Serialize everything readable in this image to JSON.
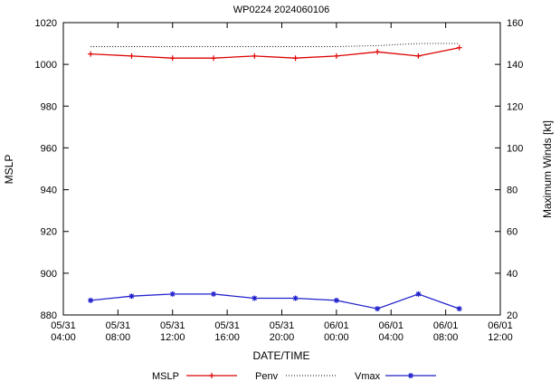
{
  "title": "WP0224 2024060106",
  "axes": {
    "y_left_label": "MSLP",
    "y_right_label": "Maximum Winds [kt]",
    "x_label": "DATE/TIME"
  },
  "chart_data": {
    "type": "line",
    "title": "WP0224 2024060106",
    "xlabel": "DATE/TIME",
    "ylabel_left": "MSLP",
    "ylabel_right": "Maximum Winds [kt]",
    "grid": false,
    "legend_position": "bottom-center",
    "x_range_hours": [
      4,
      36
    ],
    "x_ticks": [
      {
        "date": "05/31",
        "time": "04:00",
        "hour": 4
      },
      {
        "date": "05/31",
        "time": "08:00",
        "hour": 8
      },
      {
        "date": "05/31",
        "time": "12:00",
        "hour": 12
      },
      {
        "date": "05/31",
        "time": "16:00",
        "hour": 16
      },
      {
        "date": "05/31",
        "time": "20:00",
        "hour": 20
      },
      {
        "date": "06/01",
        "time": "00:00",
        "hour": 24
      },
      {
        "date": "06/01",
        "time": "04:00",
        "hour": 28
      },
      {
        "date": "06/01",
        "time": "08:00",
        "hour": 32
      },
      {
        "date": "06/01",
        "time": "12:00",
        "hour": 36
      }
    ],
    "y_left": {
      "label": "MSLP",
      "min": 880,
      "max": 1020,
      "tick_step": 20
    },
    "y_right": {
      "label": "Maximum Winds [kt]",
      "min": 20,
      "max": 160,
      "tick_step": 20
    },
    "x_hours": [
      6,
      9,
      12,
      15,
      18,
      21,
      24,
      27,
      30,
      33
    ],
    "series": [
      {
        "name": "MSLP",
        "axis": "left",
        "color": "#dd0000",
        "style": "solid",
        "marker": "plus",
        "values": [
          1005,
          1004,
          1003,
          1003,
          1004,
          1003,
          1004,
          1006,
          1004,
          1008
        ]
      },
      {
        "name": "Penv",
        "axis": "left",
        "color": "#000000",
        "style": "dotted",
        "marker": "none",
        "values": [
          1008.5,
          1008.5,
          1008.5,
          1008.5,
          1008.5,
          1008.5,
          1008.5,
          1009,
          1010,
          1010
        ]
      },
      {
        "name": "Vmax",
        "axis": "right",
        "color": "#2222cc",
        "style": "solid",
        "marker": "asterisk",
        "values": [
          27,
          29,
          30,
          30,
          28,
          28,
          27,
          23,
          30,
          23
        ]
      }
    ],
    "legend": [
      "MSLP",
      "Penv",
      "Vmax"
    ]
  }
}
